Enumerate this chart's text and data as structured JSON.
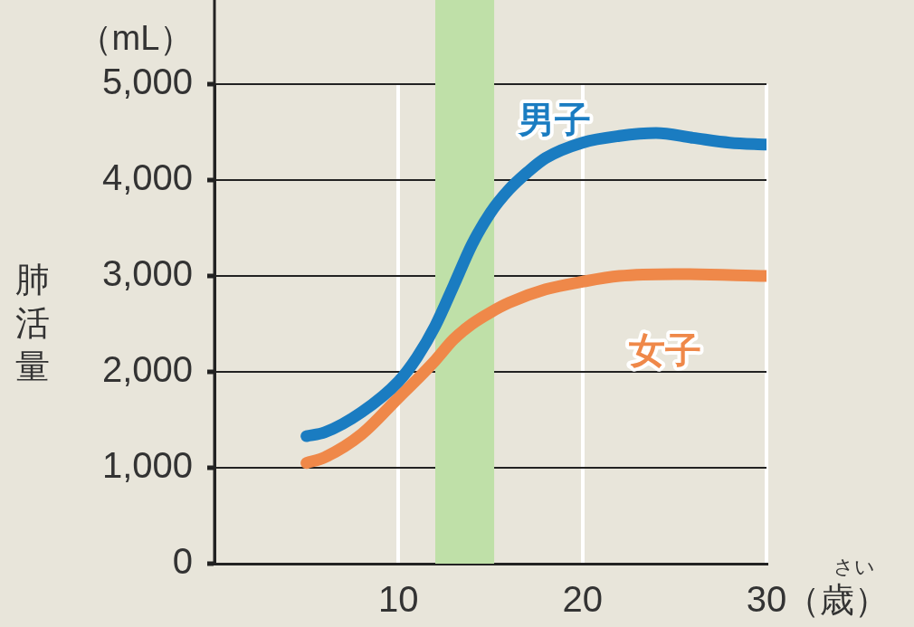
{
  "chart_data": {
    "type": "line",
    "ylabel": "肺活量",
    "xlabel": "（歳）",
    "annotations": [
      "（mL）",
      "さい"
    ],
    "xlim": [
      0,
      30
    ],
    "xticks": [
      10,
      20,
      30
    ],
    "ylim": [
      0,
      5000
    ],
    "yticks": [
      0,
      {
        "value": 1000,
        "label": "1,000"
      },
      {
        "value": 2000,
        "label": "2,000"
      },
      {
        "value": 3000,
        "label": "3,000"
      },
      {
        "value": 4000,
        "label": "4,000"
      },
      {
        "value": 5000,
        "label": "5,000"
      }
    ],
    "grid": true,
    "legend": false,
    "marker": "none",
    "line_style": "solid",
    "bands": [
      {
        "axis": "x",
        "from": 12,
        "to": 15.2,
        "color": "#bfe0a8"
      }
    ],
    "series": [
      {
        "name": "男子",
        "color": "#1a7cc1",
        "x": [
          5,
          6,
          8,
          10,
          11,
          12,
          13,
          14,
          15,
          16,
          17,
          18,
          20,
          22,
          24,
          26,
          28,
          30
        ],
        "values": [
          1330,
          1370,
          1580,
          1900,
          2150,
          2480,
          2900,
          3330,
          3660,
          3900,
          4080,
          4230,
          4390,
          4460,
          4490,
          4440,
          4390,
          4370
        ]
      },
      {
        "name": "女子",
        "color": "#ef8849",
        "x": [
          5,
          6,
          8,
          10,
          11,
          12,
          13,
          14,
          15,
          16,
          18,
          20,
          22,
          25,
          30
        ],
        "values": [
          1050,
          1110,
          1350,
          1730,
          1920,
          2120,
          2340,
          2500,
          2620,
          2720,
          2860,
          2940,
          3000,
          3020,
          3000
        ]
      }
    ]
  }
}
